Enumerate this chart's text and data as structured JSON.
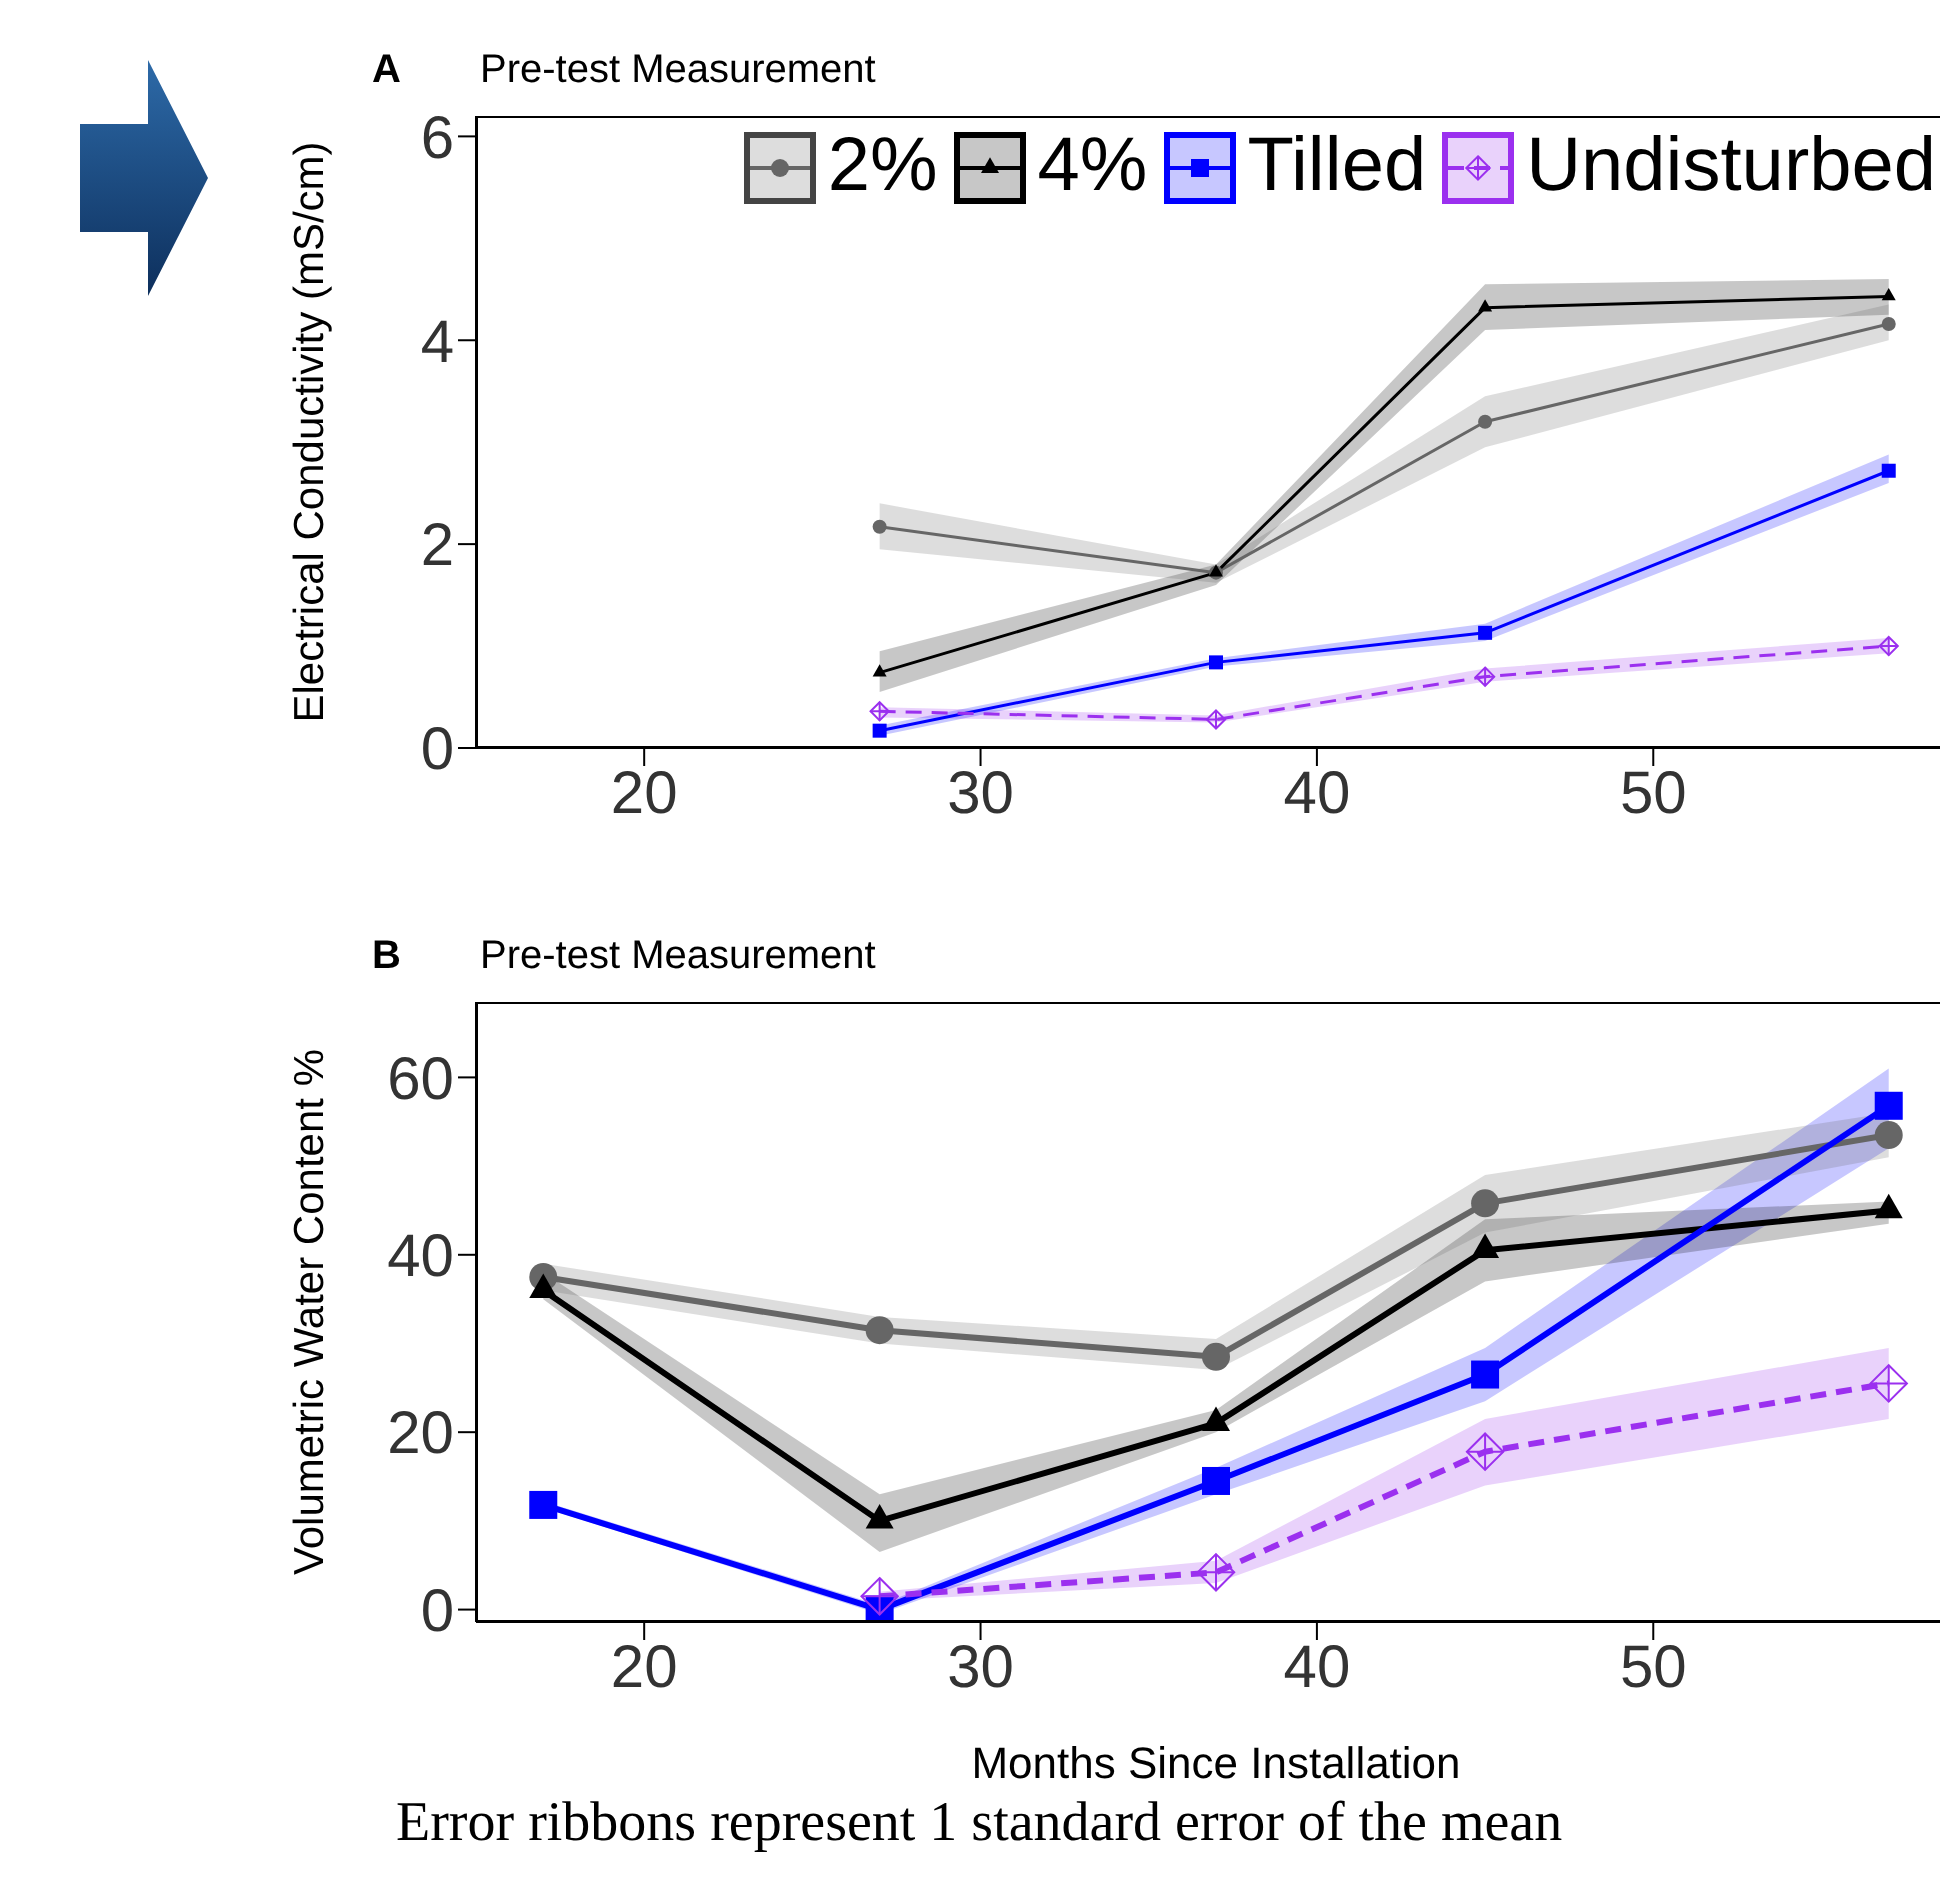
{
  "chart_data": [
    {
      "type": "line",
      "title": "Pre-test Measurement",
      "annotations": [
        "A"
      ],
      "ylabel": "Electrical Conductivity (mS/cm)",
      "x": [
        27,
        37,
        45,
        57
      ],
      "xlim": [
        15,
        59
      ],
      "xticks": [
        20,
        30,
        40,
        50
      ],
      "ylim": [
        0,
        6.2
      ],
      "yticks": [
        0,
        2,
        4,
        6
      ],
      "legend": "top right",
      "series": [
        {
          "name": "2%",
          "color": "#666666",
          "marker": "circle",
          "line_style": "solid",
          "values": [
            2.17,
            1.72,
            3.2,
            4.16
          ],
          "lower": [
            1.95,
            1.62,
            2.95,
            4.0
          ],
          "upper": [
            2.4,
            1.8,
            3.45,
            4.35
          ]
        },
        {
          "name": "4%",
          "color": "#000000",
          "marker": "triangle",
          "line_style": "solid",
          "values": [
            0.74,
            1.72,
            4.32,
            4.43
          ],
          "lower": [
            0.55,
            1.6,
            4.1,
            4.25
          ],
          "upper": [
            0.95,
            1.8,
            4.55,
            4.6
          ]
        },
        {
          "name": "Tilled",
          "color": "#0000ff",
          "marker": "square",
          "line_style": "solid",
          "values": [
            0.17,
            0.84,
            1.13,
            2.72
          ],
          "lower": [
            0.12,
            0.8,
            1.05,
            2.6
          ],
          "upper": [
            0.22,
            0.88,
            1.22,
            2.88
          ]
        },
        {
          "name": "Undisturbed",
          "color": "#9b30ef",
          "marker": "diamond",
          "line_style": "dashed",
          "values": [
            0.36,
            0.28,
            0.7,
            1.0
          ],
          "lower": [
            0.3,
            0.25,
            0.65,
            0.93
          ],
          "upper": [
            0.4,
            0.32,
            0.78,
            1.08
          ]
        }
      ]
    },
    {
      "type": "line",
      "title": "Pre-test Measurement",
      "annotations": [
        "B",
        "Error ribbons represent 1 standard error of the mean"
      ],
      "xlabel": "Months Since Installation",
      "ylabel": "Volumetric Water Content %",
      "x": [
        17,
        27,
        37,
        45,
        57
      ],
      "xlim": [
        15,
        59
      ],
      "xticks": [
        20,
        30,
        40,
        50
      ],
      "ylim": [
        -1.4,
        68.5
      ],
      "yticks": [
        0,
        20,
        40,
        60
      ],
      "series": [
        {
          "color": "#666666",
          "marker": "circle",
          "line_style": "solid",
          "values": [
            37.5,
            31.5,
            28.5,
            45.8,
            53.5
          ],
          "lower": [
            36,
            30,
            27,
            42.5,
            51
          ],
          "upper": [
            39,
            33,
            30.5,
            49,
            56
          ]
        },
        {
          "color": "#000000",
          "marker": "triangle",
          "line_style": "solid",
          "values": [
            36,
            10,
            21,
            40.5,
            45
          ],
          "lower": [
            35,
            6.5,
            20,
            37,
            43.5
          ],
          "upper": [
            38,
            13,
            22.5,
            44,
            46
          ]
        },
        {
          "color": "#0000ff",
          "marker": "square",
          "line_style": "solid",
          "values": [
            11.8,
            0,
            14.5,
            26.5,
            56.8
          ],
          "lower": [
            11.5,
            -0.5,
            13,
            23.5,
            52
          ],
          "upper": [
            12.2,
            0.5,
            16,
            29.5,
            61
          ]
        },
        {
          "color": "#9b30ef",
          "marker": "diamond",
          "line_style": "dashed",
          "values": [
            null,
            1.5,
            4.2,
            17.8,
            25.5
          ],
          "lower": [
            null,
            1,
            3,
            14,
            21.5
          ],
          "upper": [
            null,
            2,
            5.5,
            21.5,
            29.5
          ]
        }
      ]
    }
  ]
}
